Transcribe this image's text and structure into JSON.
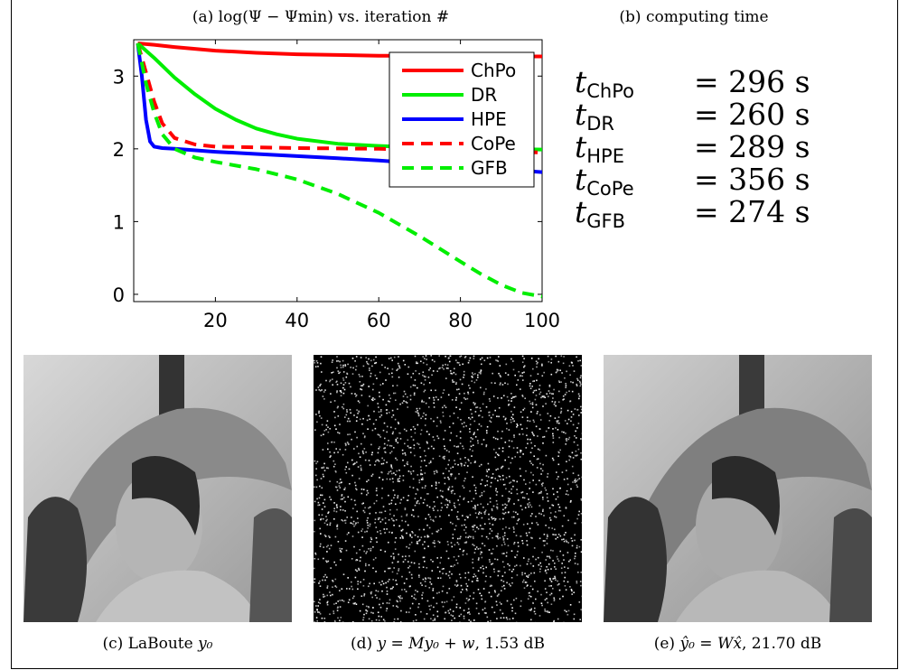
{
  "captions": {
    "a": "(a) log(Ψ − Ψmin) vs. iteration #",
    "b": "(b) computing time",
    "c_prefix": "(c) LaBoute",
    "c_var": "y₀",
    "d_prefix": "(d)",
    "d_eq": "y = My₀ + w",
    "d_suffix": ", 1.53 dB",
    "e_prefix": "(e)",
    "e_eq": "ŷ₀ = Wx̂",
    "e_suffix": ", 21.70 dB"
  },
  "computing_times": [
    {
      "sym": "t",
      "sub": "ChPo",
      "value": "= 296 s"
    },
    {
      "sym": "t",
      "sub": "DR",
      "value": "= 260 s"
    },
    {
      "sym": "t",
      "sub": "HPE",
      "value": "= 289 s"
    },
    {
      "sym": "t",
      "sub": "CoPe",
      "value": "= 356 s"
    },
    {
      "sym": "t",
      "sub": "GFB",
      "value": "= 274 s"
    }
  ],
  "chart_data": {
    "type": "line",
    "title": "(a) log(Ψ − Ψmin) vs. iteration #",
    "xlim": [
      0,
      100
    ],
    "ylim": [
      -0.1,
      3.5
    ],
    "xticks": [
      20,
      40,
      60,
      80,
      100
    ],
    "yticks": [
      0,
      1,
      2,
      3
    ],
    "grid": false,
    "legend_position": "top-right",
    "series": [
      {
        "name": "ChPo",
        "color": "#ff0000",
        "dash": false,
        "x": [
          1,
          5,
          10,
          20,
          30,
          40,
          50,
          60,
          70,
          80,
          90,
          100
        ],
        "y": [
          3.45,
          3.43,
          3.4,
          3.35,
          3.32,
          3.3,
          3.29,
          3.28,
          3.28,
          3.27,
          3.27,
          3.27
        ]
      },
      {
        "name": "DR",
        "color": "#00ee00",
        "dash": false,
        "x": [
          1,
          5,
          10,
          15,
          20,
          25,
          30,
          35,
          40,
          50,
          60,
          70,
          80,
          90,
          100
        ],
        "y": [
          3.45,
          3.25,
          2.98,
          2.75,
          2.55,
          2.4,
          2.28,
          2.2,
          2.14,
          2.07,
          2.04,
          2.02,
          2.01,
          2.0,
          1.99
        ]
      },
      {
        "name": "HPE",
        "color": "#0000ff",
        "dash": false,
        "x": [
          1,
          2,
          3,
          4,
          5,
          7,
          10,
          20,
          30,
          40,
          50,
          60,
          70,
          80,
          90,
          100
        ],
        "y": [
          3.45,
          3.0,
          2.4,
          2.1,
          2.03,
          2.01,
          2.0,
          1.96,
          1.93,
          1.9,
          1.87,
          1.84,
          1.8,
          1.76,
          1.72,
          1.68
        ]
      },
      {
        "name": "CoPe",
        "color": "#ff0000",
        "dash": true,
        "x": [
          1,
          3,
          5,
          7,
          10,
          15,
          20,
          30,
          40,
          60,
          80,
          100
        ],
        "y": [
          3.45,
          3.05,
          2.65,
          2.35,
          2.15,
          2.06,
          2.03,
          2.02,
          2.01,
          2.0,
          1.97,
          1.95
        ]
      },
      {
        "name": "GFB",
        "color": "#00ee00",
        "dash": true,
        "x": [
          1,
          3,
          5,
          7,
          10,
          15,
          20,
          30,
          40,
          50,
          60,
          70,
          80,
          85,
          90,
          95,
          100
        ],
        "y": [
          3.45,
          2.9,
          2.5,
          2.2,
          2.0,
          1.88,
          1.82,
          1.72,
          1.58,
          1.38,
          1.12,
          0.8,
          0.45,
          0.28,
          0.13,
          0.02,
          -0.03
        ]
      }
    ]
  }
}
